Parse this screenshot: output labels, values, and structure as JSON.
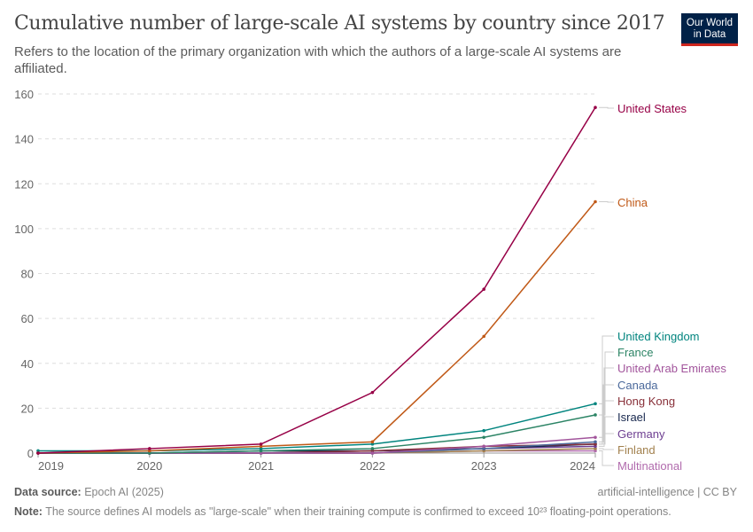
{
  "header": {
    "title": "Cumulative number of large-scale AI systems by country since 2017",
    "subtitle": "Refers to the location of the primary organization with which the authors of a large-scale AI systems are affiliated.",
    "logo": "Our World in Data"
  },
  "footer": {
    "source_label": "Data source:",
    "source": "Epoch AI (2025)",
    "license": "artificial-intelligence | CC BY",
    "note_label": "Note:",
    "note": "The source defines AI models as \"large-scale\" when their training compute is confirmed to exceed 10²³ floating-point operations."
  },
  "chart_data": {
    "type": "line",
    "title": "Cumulative number of large-scale AI systems by country since 2017",
    "x": [
      2019,
      2020,
      2021,
      2022,
      2023,
      2024
    ],
    "xlim": [
      2019,
      2024
    ],
    "ylim": [
      0,
      160
    ],
    "yticks": [
      0,
      20,
      40,
      60,
      80,
      100,
      120,
      140,
      160
    ],
    "xticks": [
      "2019",
      "2020",
      "2021",
      "2022",
      "2023",
      "2024"
    ],
    "grid": "horizontal dashed",
    "legend": "right, line-end labels",
    "series": [
      {
        "name": "Multinational",
        "color": "#b16bad",
        "values": [
          0,
          0,
          0,
          0,
          1,
          1
        ]
      },
      {
        "name": "Finland",
        "color": "#a2814e",
        "values": [
          0,
          0,
          0,
          0,
          1,
          2
        ]
      },
      {
        "name": "Germany",
        "color": "#6d3e91",
        "values": [
          0,
          0,
          0,
          1,
          2,
          3
        ]
      },
      {
        "name": "Israel",
        "color": "#18284e",
        "values": [
          0,
          0,
          1,
          1,
          2,
          4
        ]
      },
      {
        "name": "Hong Kong",
        "color": "#883039",
        "values": [
          0,
          0,
          0,
          1,
          3,
          4
        ]
      },
      {
        "name": "Canada",
        "color": "#4c6a9c",
        "values": [
          0,
          0,
          0,
          0,
          2,
          5
        ]
      },
      {
        "name": "United Arab Emirates",
        "color": "#a2559c",
        "values": [
          0,
          0,
          0,
          0,
          3,
          7
        ]
      },
      {
        "name": "France",
        "color": "#2c8465",
        "values": [
          0,
          0,
          1,
          2,
          7,
          17
        ]
      },
      {
        "name": "United Kingdom",
        "color": "#00847e",
        "values": [
          1,
          1,
          2,
          4,
          10,
          22
        ]
      },
      {
        "name": "China",
        "color": "#c05917",
        "values": [
          0,
          1,
          3,
          5,
          52,
          112
        ]
      },
      {
        "name": "United States",
        "color": "#970046",
        "values": [
          0,
          2,
          4,
          27,
          73,
          154
        ]
      }
    ]
  }
}
